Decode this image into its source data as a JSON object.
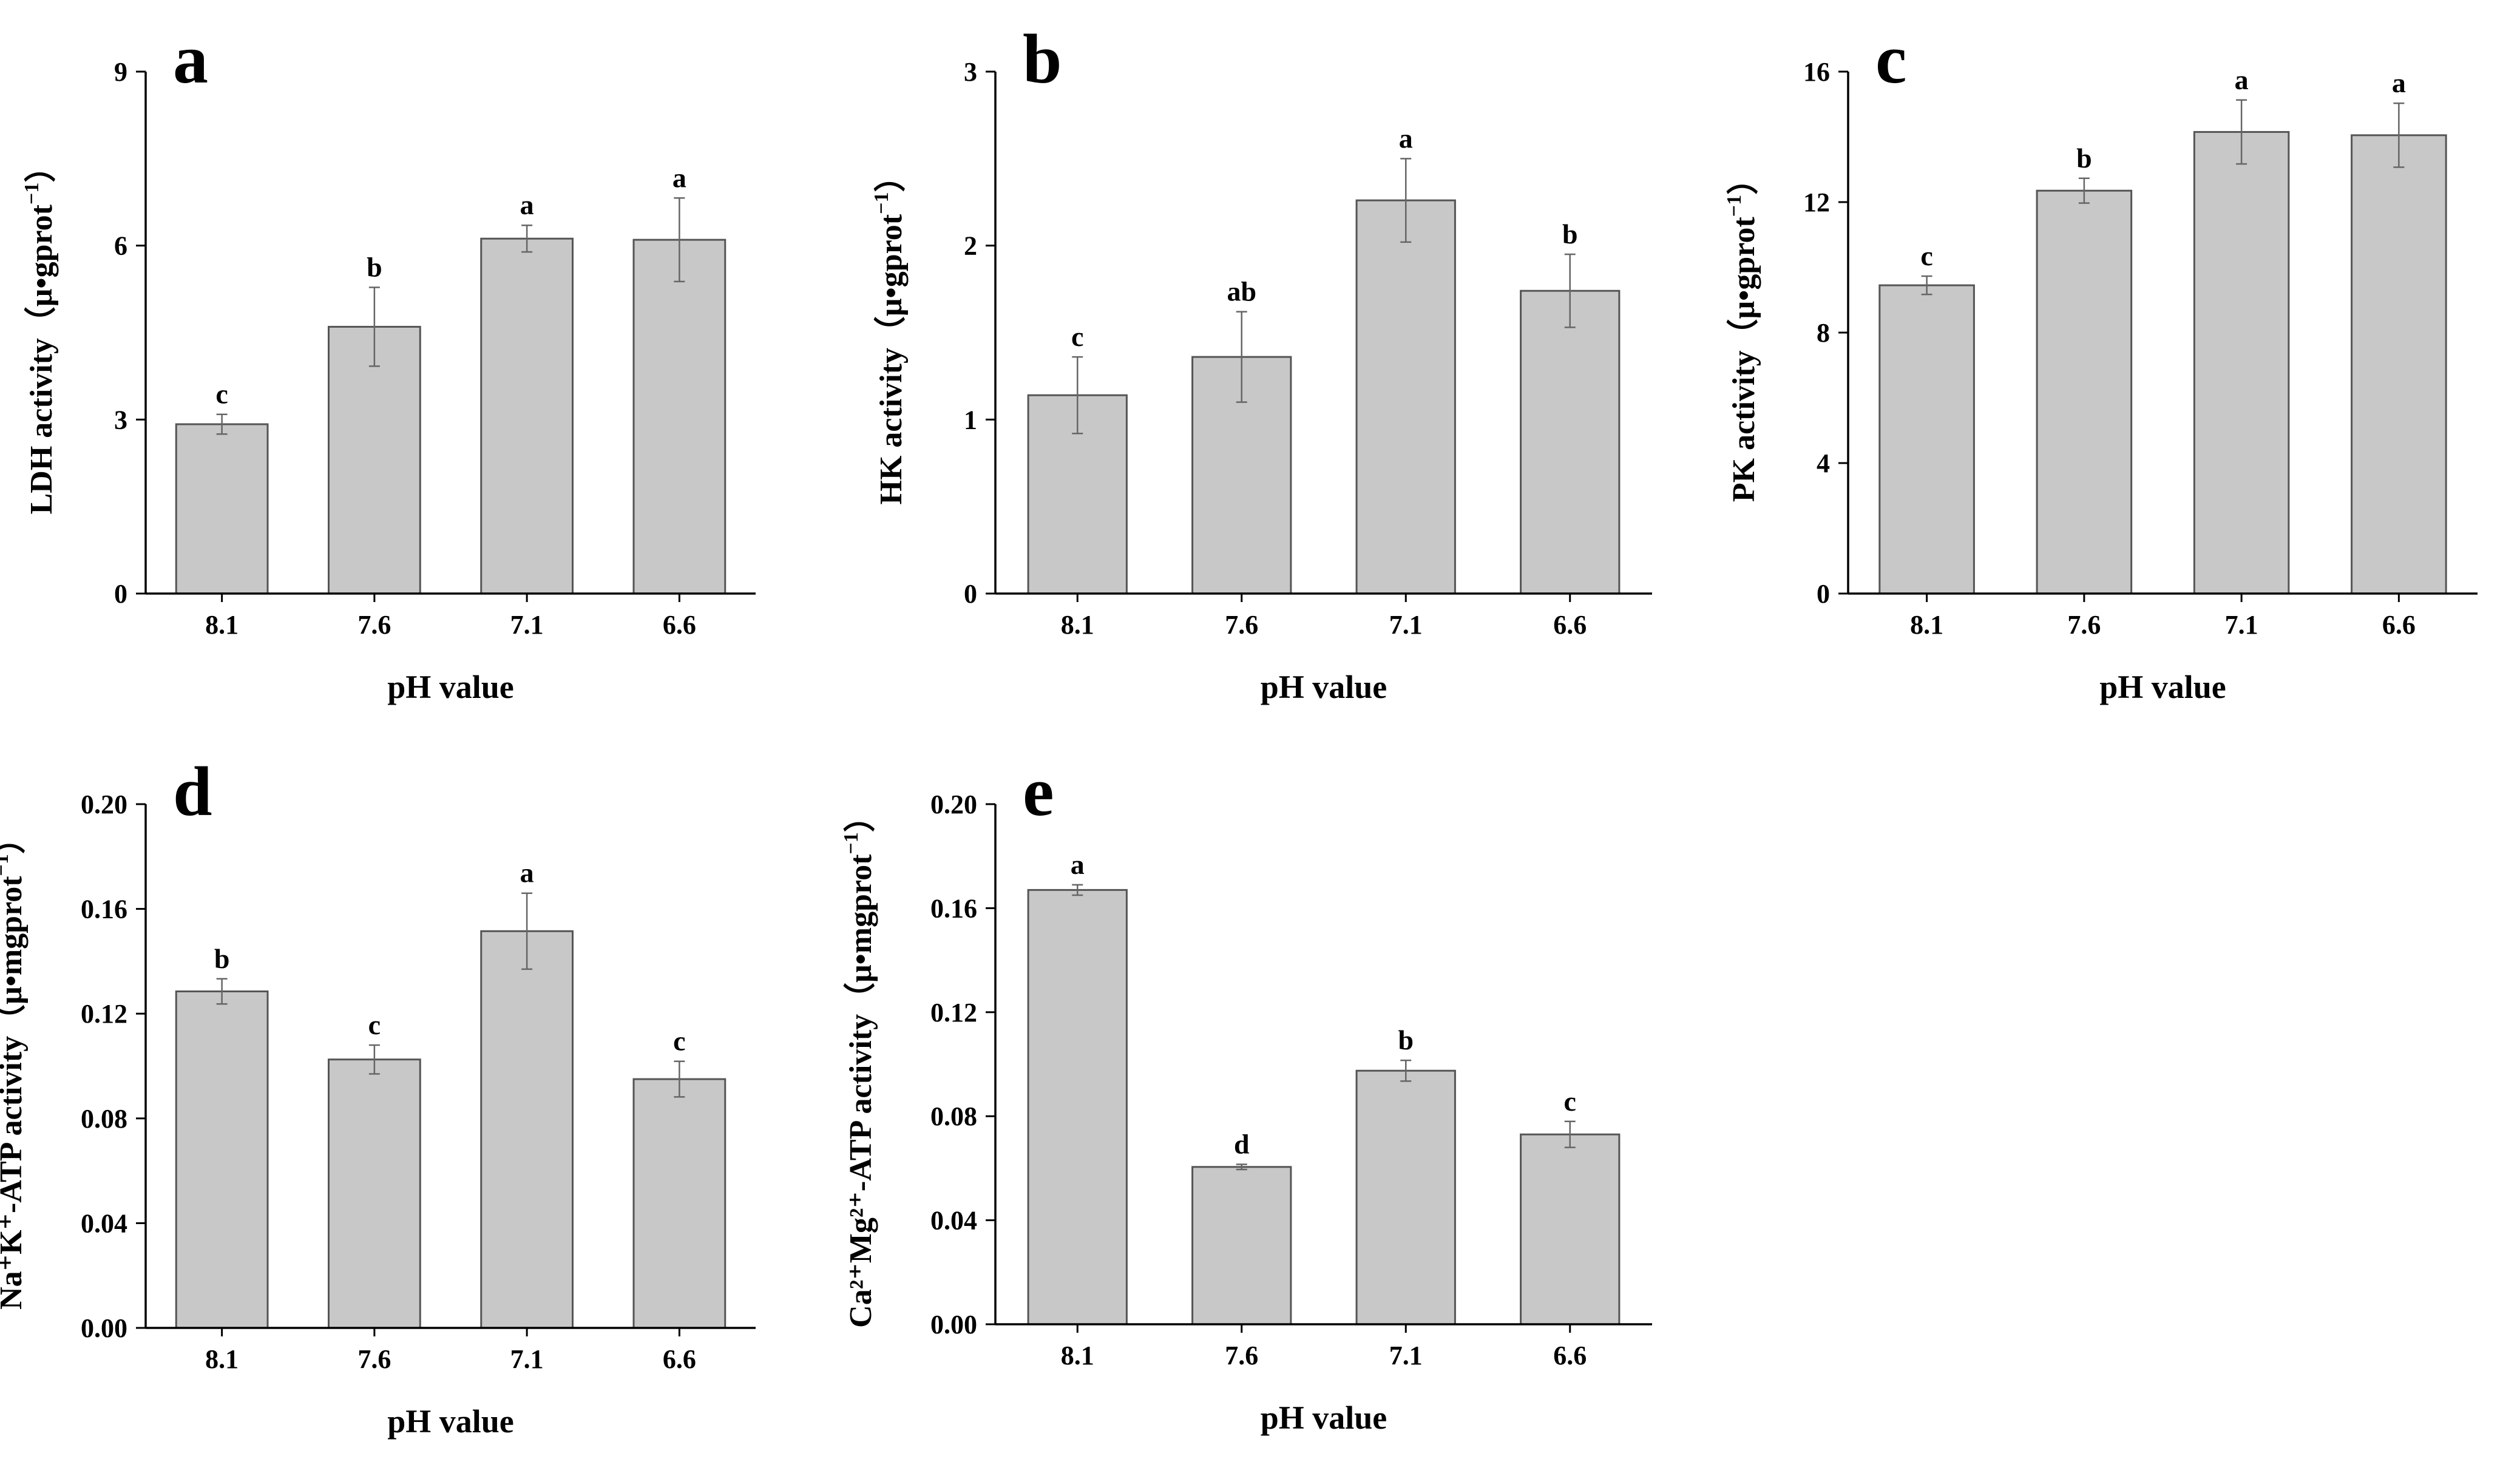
{
  "chart_data": [
    {
      "id": "a",
      "type": "bar",
      "panel_label": "a",
      "categories": [
        "8.1",
        "7.6",
        "7.1",
        "6.6"
      ],
      "values": [
        2.92,
        4.6,
        6.12,
        6.1
      ],
      "errors": [
        0.17,
        0.68,
        0.23,
        0.72
      ],
      "significance": [
        "c",
        "b",
        "a",
        "a"
      ],
      "xlabel": "pH value",
      "ylabel": {
        "pre": "LDH activity（μ•gprot",
        "sup": "−1",
        "post": "）"
      },
      "ylim": [
        0,
        9
      ],
      "yticks": [
        "0",
        "3",
        "6",
        "9"
      ]
    },
    {
      "id": "b",
      "type": "bar",
      "panel_label": "b",
      "categories": [
        "8.1",
        "7.6",
        "7.1",
        "6.6"
      ],
      "values": [
        1.14,
        1.36,
        2.26,
        1.74
      ],
      "errors": [
        0.22,
        0.26,
        0.24,
        0.21
      ],
      "significance": [
        "c",
        "ab",
        "a",
        "b"
      ],
      "xlabel": "pH value",
      "ylabel": {
        "pre": "HK activity（μ•gprot",
        "sup": "−1",
        "post": "）"
      },
      "ylim": [
        0,
        3
      ],
      "yticks": [
        "0",
        "1",
        "2",
        "3"
      ]
    },
    {
      "id": "c",
      "type": "bar",
      "panel_label": "c",
      "categories": [
        "8.1",
        "7.6",
        "7.1",
        "6.6"
      ],
      "values": [
        9.45,
        12.35,
        14.15,
        14.05
      ],
      "errors": [
        0.28,
        0.38,
        0.98,
        0.98
      ],
      "significance": [
        "c",
        "b",
        "a",
        "a"
      ],
      "xlabel": "pH value",
      "ylabel": {
        "pre": "PK activity（μ•gprot",
        "sup": "−1",
        "post": "）"
      },
      "ylim": [
        0,
        16
      ],
      "yticks": [
        "0",
        "4",
        "8",
        "12",
        "16"
      ]
    },
    {
      "id": "d",
      "type": "bar",
      "panel_label": "d",
      "categories": [
        "8.1",
        "7.6",
        "7.1",
        "6.6"
      ],
      "values": [
        0.1285,
        0.1025,
        0.1515,
        0.095
      ],
      "errors": [
        0.0048,
        0.0055,
        0.0145,
        0.0068
      ],
      "significance": [
        "b",
        "c",
        "a",
        "c"
      ],
      "xlabel": "pH value",
      "ylabel": {
        "pre": "Na⁺K⁺-ATP activity（μ•mgprot",
        "sup": "−1",
        "post": "）"
      },
      "ylim": [
        0,
        0.2
      ],
      "yticks": [
        "0.00",
        "0.04",
        "0.08",
        "0.12",
        "0.16",
        "0.20"
      ]
    },
    {
      "id": "e",
      "type": "bar",
      "panel_label": "e",
      "categories": [
        "8.1",
        "7.6",
        "7.1",
        "6.6"
      ],
      "values": [
        0.167,
        0.0605,
        0.0975,
        0.073
      ],
      "errors": [
        0.002,
        0.001,
        0.004,
        0.005
      ],
      "significance": [
        "a",
        "d",
        "b",
        "c"
      ],
      "xlabel": "pH value",
      "ylabel": {
        "pre": "Ca²⁺Mg²⁺-ATP activity（μ•mgprot",
        "sup": "−1",
        "post": "）"
      },
      "ylim": [
        0,
        0.2
      ],
      "yticks": [
        "0.00",
        "0.04",
        "0.08",
        "0.12",
        "0.16",
        "0.20"
      ]
    }
  ],
  "style": {
    "bar_fill": "#c8c8c8",
    "bar_stroke": "#555555",
    "error_color": "#666666",
    "axis_color": "#000000"
  }
}
